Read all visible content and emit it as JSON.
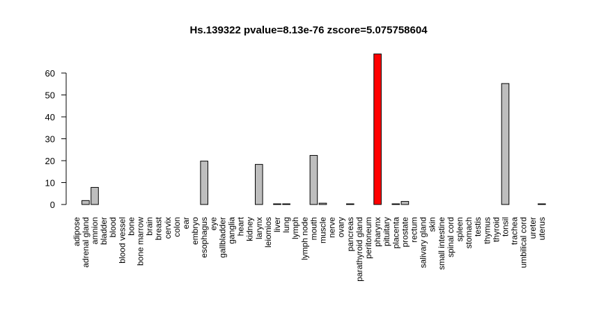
{
  "chart_data": {
    "type": "bar",
    "title": "Hs.139322 pvalue=8.13e-76 zscore=5.075758604",
    "xlabel": "",
    "ylabel": "",
    "ylim": [
      0,
      70
    ],
    "yticks": [
      0,
      10,
      20,
      30,
      40,
      50,
      60
    ],
    "grid": false,
    "colors": {
      "default": "#bebebe",
      "highlight": "#ff0000",
      "outline": "#000000"
    },
    "highlight_category": "pharynx",
    "categories": [
      "adipose",
      "adrenal gland",
      "amnion",
      "bladder",
      "blood",
      "blood vessel",
      "bone",
      "bone marrow",
      "brain",
      "breast",
      "cervix",
      "colon",
      "ear",
      "embryo",
      "esophagus",
      "eye",
      "gallbladder",
      "ganglia",
      "heart",
      "kidney",
      "larynx",
      "leiomios",
      "liver",
      "lung",
      "lymph",
      "lymph node",
      "mouth",
      "muscle",
      "nerve",
      "ovary",
      "pancreas",
      "parathyroid gland",
      "peritoneum",
      "pharynx",
      "pituitary",
      "placenta",
      "prostate",
      "rectum",
      "salivary gland",
      "skin",
      "small intestine",
      "spinal cord",
      "spleen",
      "stomach",
      "testis",
      "thymus",
      "thyroid",
      "tonsil",
      "trachea",
      "umbilical cord",
      "ureter",
      "uterus"
    ],
    "values": [
      0,
      1.8,
      7.8,
      0,
      0,
      0,
      0,
      0,
      0,
      0,
      0,
      0,
      0,
      0,
      19.8,
      0,
      0,
      0,
      0,
      0,
      18.3,
      0,
      0.3,
      0.3,
      0,
      0,
      22.4,
      0.6,
      0,
      0,
      0.3,
      0,
      0,
      68.7,
      0,
      0.3,
      1.4,
      0,
      0,
      0,
      0,
      0,
      0,
      0,
      0,
      0,
      0,
      55.2,
      0,
      0,
      0,
      0.3
    ]
  }
}
